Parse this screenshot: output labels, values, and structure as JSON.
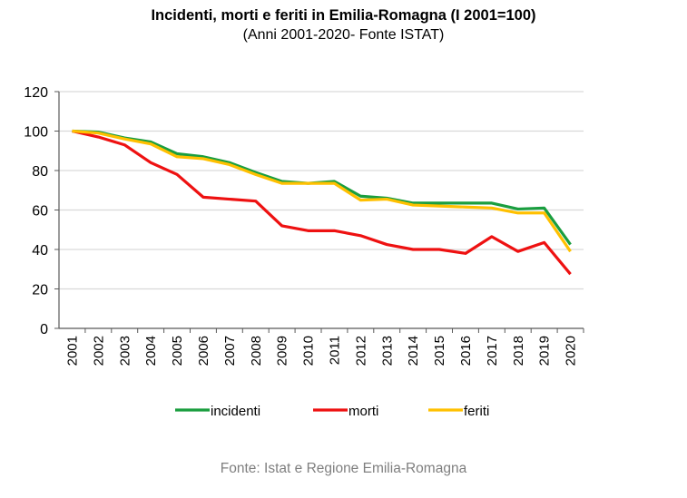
{
  "chart_data": {
    "type": "line",
    "title": "Incidenti, morti e feriti in Emilia-Romagna (I 2001=100)",
    "subtitle": "(Anni 2001-2020- Fonte ISTAT)",
    "xlabel": "",
    "ylabel": "",
    "ylim": [
      0,
      120
    ],
    "yticks": [
      0,
      20,
      40,
      60,
      80,
      100,
      120
    ],
    "grid": true,
    "legend": "bottom",
    "categories": [
      "2001",
      "2002",
      "2003",
      "2004",
      "2005",
      "2006",
      "2007",
      "2008",
      "2009",
      "2010",
      "2011",
      "2012",
      "2013",
      "2014",
      "2015",
      "2016",
      "2017",
      "2018",
      "2019",
      "2020"
    ],
    "series": [
      {
        "name": "incidenti",
        "color": "#1a9e3f",
        "values": [
          100,
          99.5,
          96.5,
          94.5,
          88.5,
          87,
          84,
          79,
          74.5,
          73.5,
          74.5,
          67,
          66,
          63.5,
          63.5,
          63.5,
          63.5,
          60.5,
          61,
          42.5
        ]
      },
      {
        "name": "morti",
        "color": "#ee1111",
        "values": [
          100,
          97,
          93,
          84,
          78,
          66.5,
          65.5,
          64.5,
          52,
          49.5,
          49.5,
          47,
          42.5,
          40,
          40,
          38,
          46.5,
          39,
          43.5,
          27.5
        ]
      },
      {
        "name": "feriti",
        "color": "#ffc000",
        "values": [
          100,
          99,
          96,
          93.5,
          87,
          86,
          83,
          78,
          73.5,
          73.5,
          73.5,
          65,
          65.5,
          62.5,
          62,
          61.5,
          61,
          58.5,
          58.5,
          39
        ]
      }
    ]
  },
  "footer": "Fonte: Istat e Regione Emilia-Romagna"
}
